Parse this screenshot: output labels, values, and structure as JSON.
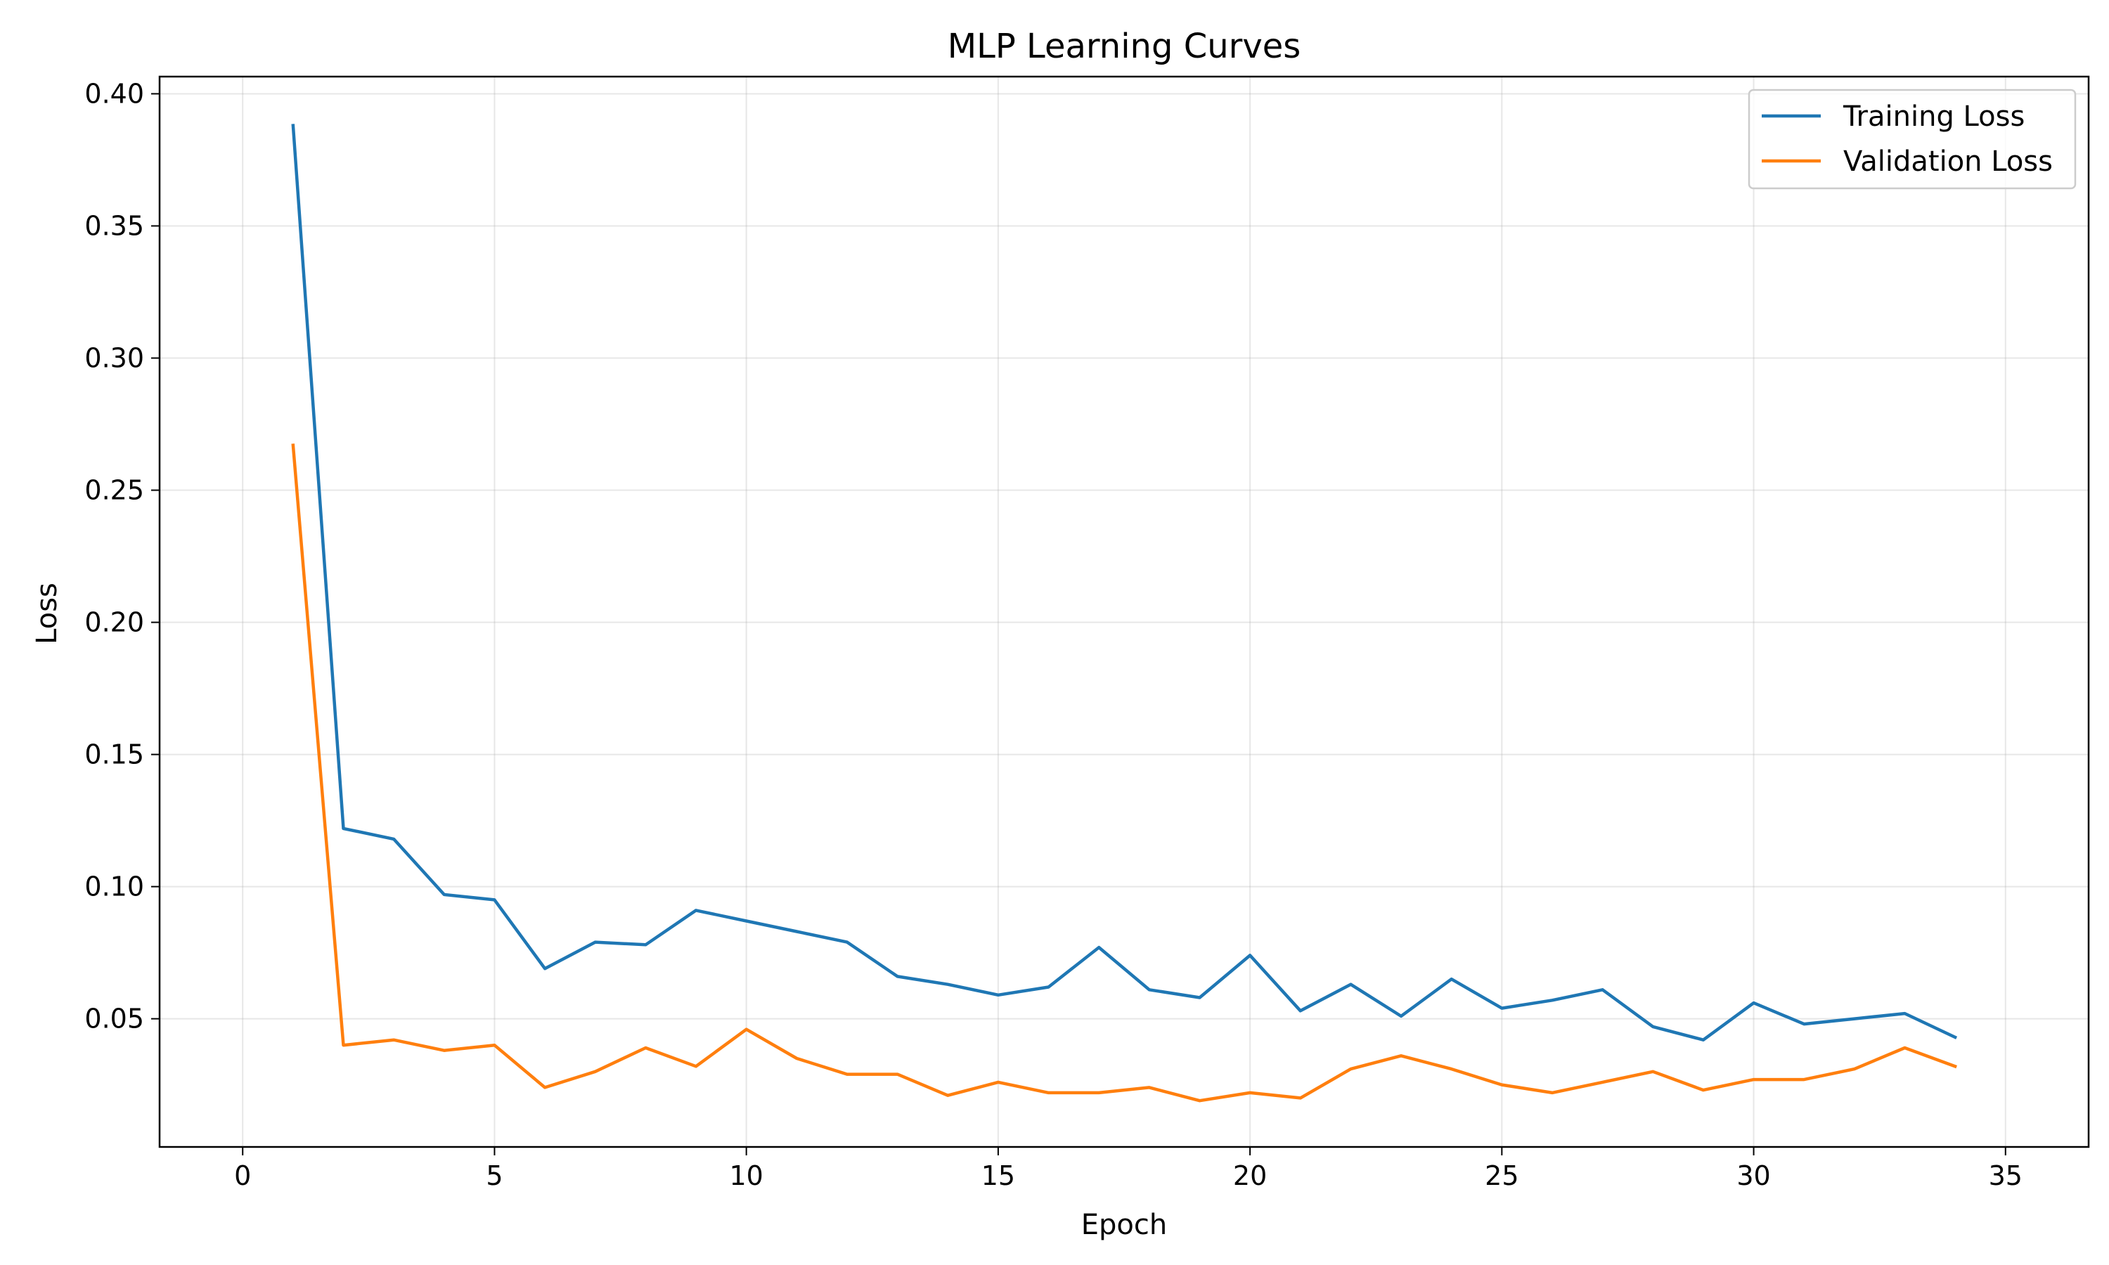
{
  "chart_data": {
    "type": "line",
    "title": "MLP Learning Curves",
    "xlabel": "Epoch",
    "ylabel": "Loss",
    "xlim": [
      -1.65,
      36.65
    ],
    "ylim": [
      0.0015,
      0.4065
    ],
    "x_ticks": [
      0,
      5,
      10,
      15,
      20,
      25,
      30,
      35
    ],
    "y_ticks": [
      0.05,
      0.1,
      0.15,
      0.2,
      0.25,
      0.3,
      0.35,
      0.4
    ],
    "x_tick_labels": [
      "0",
      "5",
      "10",
      "15",
      "20",
      "25",
      "30",
      "35"
    ],
    "y_tick_labels": [
      "0.05",
      "0.10",
      "0.15",
      "0.20",
      "0.25",
      "0.30",
      "0.35",
      "0.40"
    ],
    "grid": true,
    "legend_position": "top-right",
    "x": [
      1,
      2,
      3,
      4,
      5,
      6,
      7,
      8,
      9,
      10,
      11,
      12,
      13,
      14,
      15,
      16,
      17,
      18,
      19,
      20,
      21,
      22,
      23,
      24,
      25,
      26,
      27,
      28,
      29,
      30,
      31,
      32,
      33,
      34
    ],
    "series": [
      {
        "name": "Training Loss",
        "color": "#1f77b4",
        "values": [
          0.388,
          0.122,
          0.118,
          0.097,
          0.095,
          0.069,
          0.079,
          0.078,
          0.091,
          0.087,
          0.083,
          0.079,
          0.066,
          0.063,
          0.059,
          0.062,
          0.077,
          0.061,
          0.058,
          0.074,
          0.053,
          0.063,
          0.051,
          0.065,
          0.054,
          0.057,
          0.061,
          0.047,
          0.042,
          0.056,
          0.048,
          0.05,
          0.052,
          0.043
        ]
      },
      {
        "name": "Validation Loss",
        "color": "#ff7f0e",
        "values": [
          0.267,
          0.04,
          0.042,
          0.038,
          0.04,
          0.024,
          0.03,
          0.039,
          0.032,
          0.046,
          0.035,
          0.029,
          0.029,
          0.021,
          0.026,
          0.022,
          0.022,
          0.024,
          0.019,
          0.022,
          0.02,
          0.031,
          0.036,
          0.031,
          0.025,
          0.022,
          0.026,
          0.03,
          0.023,
          0.027,
          0.027,
          0.031,
          0.039,
          0.032
        ]
      }
    ]
  }
}
